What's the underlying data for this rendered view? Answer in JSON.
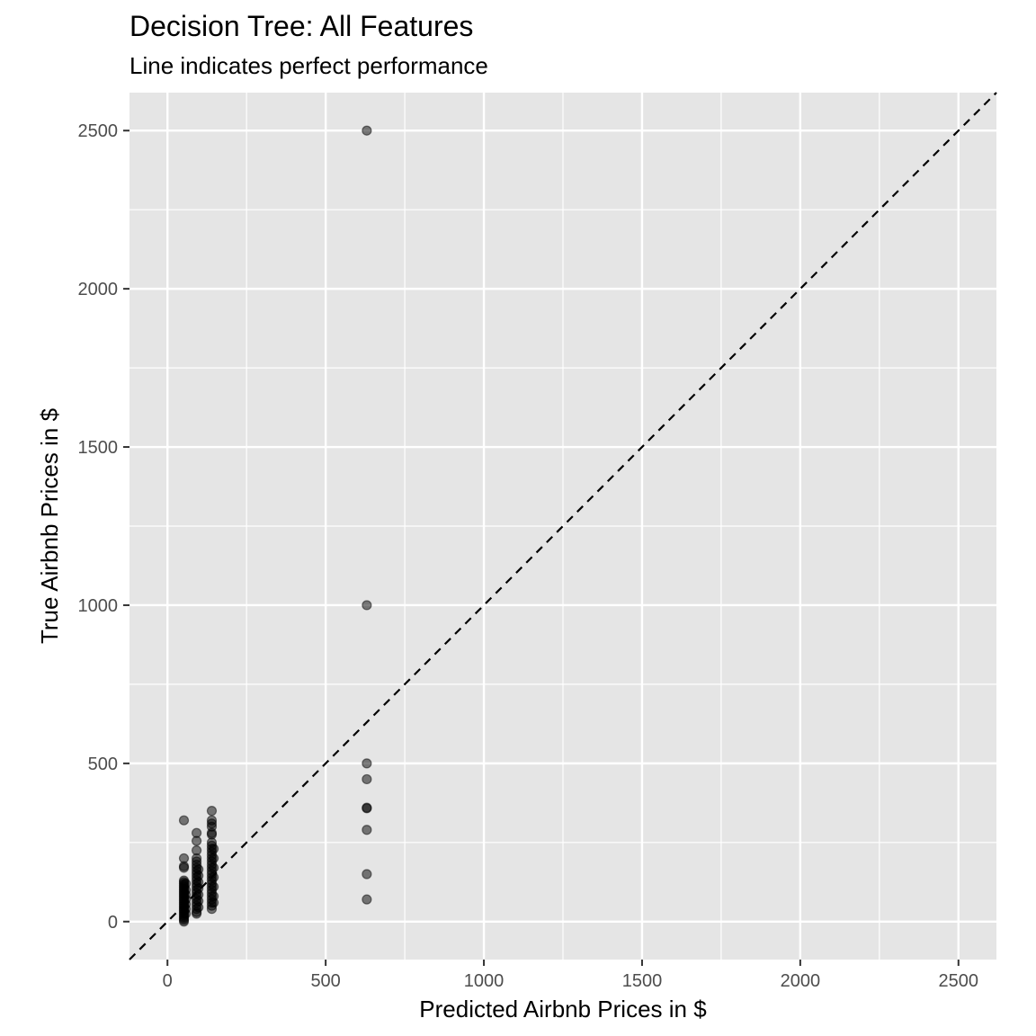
{
  "chart_data": {
    "type": "scatter",
    "title": "Decision Tree: All Features",
    "subtitle": "Line indicates perfect performance",
    "xlabel": "Predicted Airbnb Prices in $",
    "ylabel": "True Airbnb Prices in $",
    "xlim": [
      -120,
      2620
    ],
    "ylim": [
      -120,
      2620
    ],
    "x_ticks": [
      0,
      500,
      1000,
      1500,
      2000,
      2500
    ],
    "y_ticks": [
      0,
      500,
      1000,
      1500,
      2000,
      2500
    ],
    "grid": true,
    "reference_line": {
      "style": "dashed",
      "slope": 1,
      "intercept": 0
    },
    "point_color": "#000000",
    "panel_color": "#e5e5e5",
    "grid_color": "#ffffff",
    "points": [
      {
        "x": 630,
        "y": 2500
      },
      {
        "x": 630,
        "y": 1000
      },
      {
        "x": 630,
        "y": 500
      },
      {
        "x": 630,
        "y": 450
      },
      {
        "x": 630,
        "y": 360
      },
      {
        "x": 630,
        "y": 358
      },
      {
        "x": 630,
        "y": 290
      },
      {
        "x": 630,
        "y": 150
      },
      {
        "x": 630,
        "y": 70
      },
      {
        "x": 52,
        "y": 320
      },
      {
        "x": 52,
        "y": 200
      },
      {
        "x": 52,
        "y": 175
      },
      {
        "x": 52,
        "y": 170
      },
      {
        "x": 52,
        "y": 130
      },
      {
        "x": 52,
        "y": 125
      },
      {
        "x": 52,
        "y": 120
      },
      {
        "x": 52,
        "y": 115
      },
      {
        "x": 52,
        "y": 110
      },
      {
        "x": 52,
        "y": 105
      },
      {
        "x": 52,
        "y": 100
      },
      {
        "x": 52,
        "y": 95
      },
      {
        "x": 52,
        "y": 90
      },
      {
        "x": 52,
        "y": 85
      },
      {
        "x": 52,
        "y": 80
      },
      {
        "x": 52,
        "y": 75
      },
      {
        "x": 52,
        "y": 70
      },
      {
        "x": 52,
        "y": 65
      },
      {
        "x": 52,
        "y": 60
      },
      {
        "x": 52,
        "y": 55
      },
      {
        "x": 52,
        "y": 50
      },
      {
        "x": 52,
        "y": 45
      },
      {
        "x": 52,
        "y": 40
      },
      {
        "x": 52,
        "y": 35
      },
      {
        "x": 52,
        "y": 30
      },
      {
        "x": 52,
        "y": 25
      },
      {
        "x": 52,
        "y": 20
      },
      {
        "x": 52,
        "y": 15
      },
      {
        "x": 52,
        "y": 10
      },
      {
        "x": 52,
        "y": 5
      },
      {
        "x": 52,
        "y": 0
      },
      {
        "x": 58,
        "y": 120
      },
      {
        "x": 58,
        "y": 100
      },
      {
        "x": 58,
        "y": 85
      },
      {
        "x": 58,
        "y": 70
      },
      {
        "x": 58,
        "y": 55
      },
      {
        "x": 58,
        "y": 40
      },
      {
        "x": 58,
        "y": 25
      },
      {
        "x": 92,
        "y": 280
      },
      {
        "x": 92,
        "y": 255
      },
      {
        "x": 92,
        "y": 225
      },
      {
        "x": 92,
        "y": 200
      },
      {
        "x": 92,
        "y": 190
      },
      {
        "x": 92,
        "y": 180
      },
      {
        "x": 92,
        "y": 170
      },
      {
        "x": 92,
        "y": 160
      },
      {
        "x": 92,
        "y": 150
      },
      {
        "x": 92,
        "y": 140
      },
      {
        "x": 92,
        "y": 130
      },
      {
        "x": 92,
        "y": 120
      },
      {
        "x": 92,
        "y": 110
      },
      {
        "x": 92,
        "y": 100
      },
      {
        "x": 92,
        "y": 90
      },
      {
        "x": 92,
        "y": 80
      },
      {
        "x": 92,
        "y": 70
      },
      {
        "x": 92,
        "y": 60
      },
      {
        "x": 92,
        "y": 50
      },
      {
        "x": 92,
        "y": 40
      },
      {
        "x": 92,
        "y": 30
      },
      {
        "x": 92,
        "y": 25
      },
      {
        "x": 98,
        "y": 165
      },
      {
        "x": 98,
        "y": 145
      },
      {
        "x": 98,
        "y": 125
      },
      {
        "x": 98,
        "y": 105
      },
      {
        "x": 98,
        "y": 85
      },
      {
        "x": 98,
        "y": 65
      },
      {
        "x": 98,
        "y": 45
      },
      {
        "x": 140,
        "y": 350
      },
      {
        "x": 140,
        "y": 320
      },
      {
        "x": 140,
        "y": 310
      },
      {
        "x": 140,
        "y": 300
      },
      {
        "x": 140,
        "y": 280
      },
      {
        "x": 140,
        "y": 275
      },
      {
        "x": 140,
        "y": 250
      },
      {
        "x": 140,
        "y": 240
      },
      {
        "x": 140,
        "y": 230
      },
      {
        "x": 140,
        "y": 220
      },
      {
        "x": 140,
        "y": 210
      },
      {
        "x": 140,
        "y": 200
      },
      {
        "x": 140,
        "y": 190
      },
      {
        "x": 140,
        "y": 180
      },
      {
        "x": 140,
        "y": 170
      },
      {
        "x": 140,
        "y": 160
      },
      {
        "x": 140,
        "y": 150
      },
      {
        "x": 140,
        "y": 140
      },
      {
        "x": 140,
        "y": 130
      },
      {
        "x": 140,
        "y": 120
      },
      {
        "x": 140,
        "y": 110
      },
      {
        "x": 140,
        "y": 100
      },
      {
        "x": 140,
        "y": 90
      },
      {
        "x": 140,
        "y": 80
      },
      {
        "x": 140,
        "y": 70
      },
      {
        "x": 140,
        "y": 60
      },
      {
        "x": 140,
        "y": 50
      },
      {
        "x": 140,
        "y": 40
      },
      {
        "x": 146,
        "y": 230
      },
      {
        "x": 146,
        "y": 200
      },
      {
        "x": 146,
        "y": 170
      },
      {
        "x": 146,
        "y": 140
      },
      {
        "x": 146,
        "y": 110
      },
      {
        "x": 146,
        "y": 80
      },
      {
        "x": 146,
        "y": 60
      }
    ]
  }
}
